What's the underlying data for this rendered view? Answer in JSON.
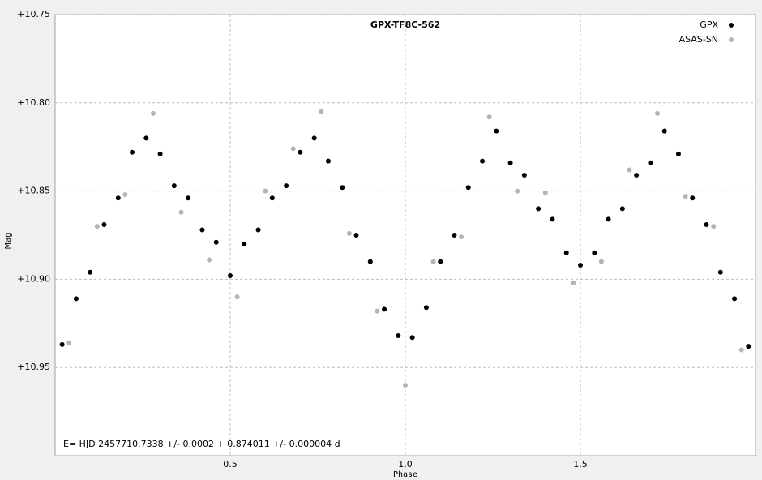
{
  "chart_data": {
    "type": "scatter",
    "title": "GPX-TF8C-562",
    "x_label": "Phase",
    "y_label": "Mag",
    "annotation": "E= HJD 2457710.7338 +/- 0.0002 + 0.874011 +/- 0.000004 d",
    "xlim": [
      0,
      2
    ],
    "ylim": [
      10.75,
      11.0
    ],
    "y_inverted": true,
    "grid": true,
    "legend": "top-right",
    "xticks": [
      0.5,
      {
        "value": 1,
        "label": "1.0"
      },
      1.5
    ],
    "yticks": [
      {
        "value": 10.75,
        "label": "+10.75"
      },
      {
        "value": 10.8,
        "label": "+10.80"
      },
      {
        "value": 10.85,
        "label": "+10.85"
      },
      {
        "value": 10.9,
        "label": "+10.90"
      },
      {
        "value": 10.95,
        "label": "+10.95"
      }
    ],
    "series": [
      {
        "name": "GPX",
        "color": "#000000",
        "x": [
          0.02,
          0.06,
          0.1,
          0.14,
          0.18,
          0.22,
          0.26,
          0.3,
          0.34,
          0.38,
          0.42,
          0.46,
          0.5,
          0.54,
          0.58,
          0.62,
          0.66,
          0.7,
          0.74,
          0.78,
          0.82,
          0.86,
          0.9,
          0.94,
          0.98,
          1.02,
          1.06,
          1.1,
          1.14,
          1.18,
          1.22,
          1.26,
          1.3,
          1.34,
          1.38,
          1.42,
          1.46,
          1.5,
          1.54,
          1.58,
          1.62,
          1.66,
          1.7,
          1.74,
          1.78,
          1.82,
          1.86,
          1.9,
          1.94,
          1.98
        ],
        "values": [
          10.937,
          10.911,
          10.896,
          10.869,
          10.854,
          10.828,
          10.82,
          10.829,
          10.847,
          10.854,
          10.872,
          10.879,
          10.898,
          10.88,
          10.872,
          10.854,
          10.847,
          10.828,
          10.82,
          10.833,
          10.848,
          10.875,
          10.89,
          10.917,
          10.932,
          10.933,
          10.916,
          10.89,
          10.875,
          10.848,
          10.833,
          10.816,
          10.834,
          10.841,
          10.86,
          10.866,
          10.885,
          10.892,
          10.885,
          10.866,
          10.86,
          10.841,
          10.834,
          10.816,
          10.829,
          10.854,
          10.869,
          10.896,
          10.911,
          10.938
        ]
      },
      {
        "name": "ASAS-SN",
        "color": "#b4b4b4",
        "x": [
          0.04,
          0.12,
          0.2,
          0.28,
          0.36,
          0.44,
          0.52,
          0.6,
          0.68,
          0.76,
          0.84,
          0.92,
          1.0,
          1.08,
          1.16,
          1.24,
          1.32,
          1.4,
          1.48,
          1.56,
          1.64,
          1.72,
          1.8,
          1.88,
          1.96
        ],
        "values": [
          10.936,
          10.87,
          10.852,
          10.806,
          10.862,
          10.889,
          10.91,
          10.85,
          10.826,
          10.805,
          10.874,
          10.918,
          10.96,
          10.89,
          10.876,
          10.808,
          10.85,
          10.851,
          10.902,
          10.89,
          10.838,
          10.806,
          10.853,
          10.87,
          10.94
        ]
      }
    ]
  }
}
